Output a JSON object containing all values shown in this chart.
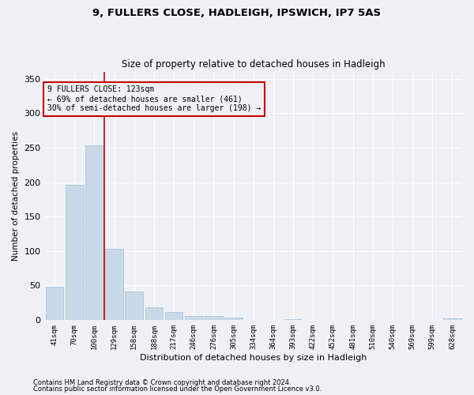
{
  "title1": "9, FULLERS CLOSE, HADLEIGH, IPSWICH, IP7 5AS",
  "title2": "Size of property relative to detached houses in Hadleigh",
  "xlabel": "Distribution of detached houses by size in Hadleigh",
  "ylabel": "Number of detached properties",
  "categories": [
    "41sqm",
    "70sqm",
    "100sqm",
    "129sqm",
    "158sqm",
    "188sqm",
    "217sqm",
    "246sqm",
    "276sqm",
    "305sqm",
    "334sqm",
    "364sqm",
    "393sqm",
    "422sqm",
    "452sqm",
    "481sqm",
    "510sqm",
    "540sqm",
    "569sqm",
    "599sqm",
    "628sqm"
  ],
  "values": [
    48,
    196,
    253,
    103,
    41,
    18,
    11,
    5,
    5,
    3,
    0,
    0,
    1,
    0,
    0,
    0,
    0,
    0,
    0,
    0,
    2
  ],
  "bar_color": "#c8d9ea",
  "bar_edge_color": "#a8bfcf",
  "ylim": [
    0,
    360
  ],
  "yticks": [
    0,
    50,
    100,
    150,
    200,
    250,
    300,
    350
  ],
  "annotation_box_text": "9 FULLERS CLOSE: 123sqm\n← 69% of detached houses are smaller (461)\n30% of semi-detached houses are larger (198) →",
  "annotation_box_color": "#cc0000",
  "red_line_x": 2.5,
  "background_color": "#eef2f7",
  "footer1": "Contains HM Land Registry data © Crown copyright and database right 2024.",
  "footer2": "Contains public sector information licensed under the Open Government Licence v3.0.",
  "grid_color": "#ffffff"
}
